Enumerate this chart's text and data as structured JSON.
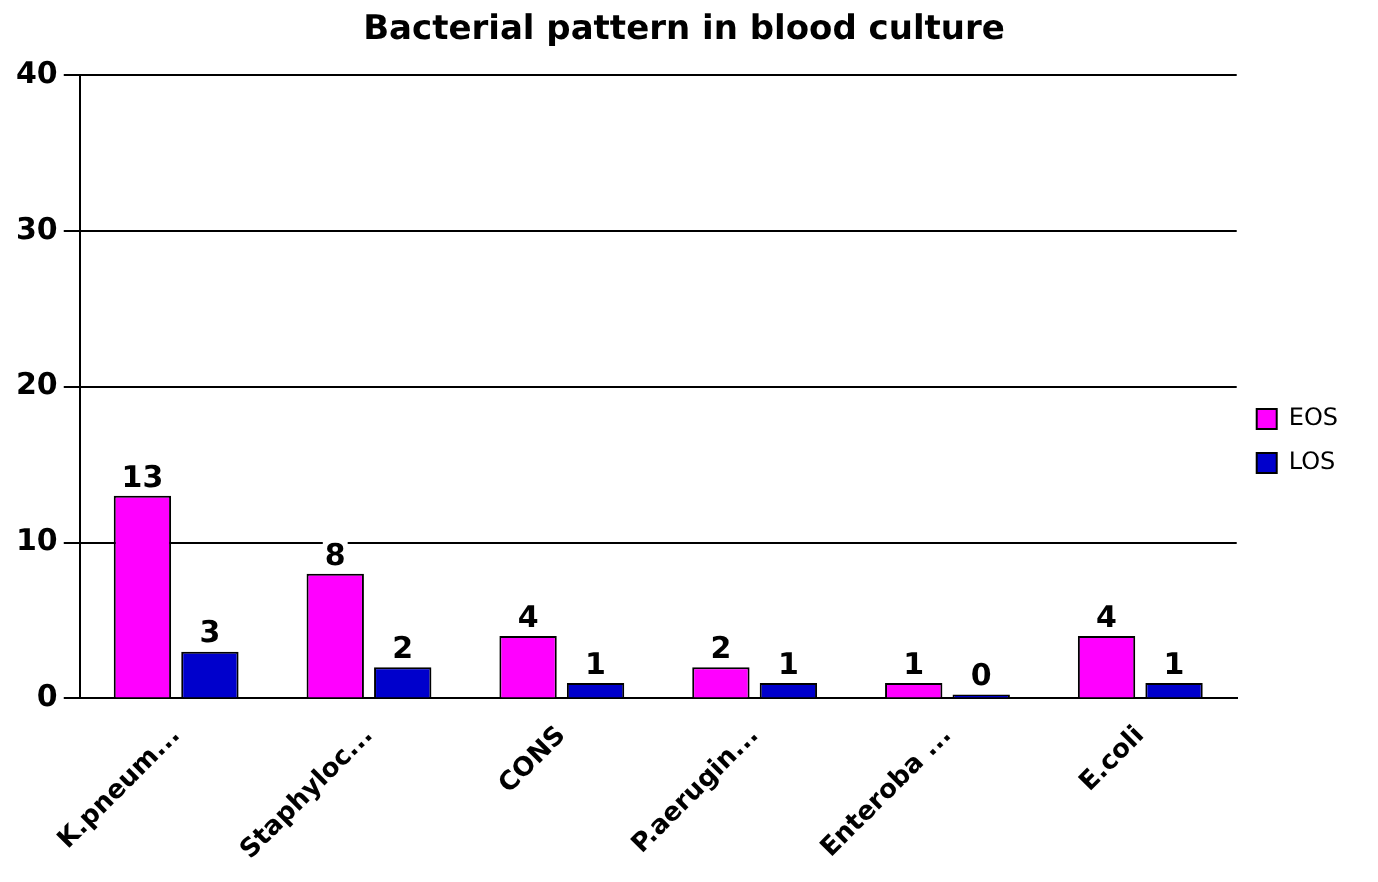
{
  "chart_data": {
    "type": "bar",
    "title": "Bacterial pattern in blood culture",
    "categories": [
      "K.pneum...",
      "Staphyloc...",
      "CONS",
      "P.aerugin...",
      "Enteroba ...",
      "E.coli"
    ],
    "series": [
      {
        "name": "EOS",
        "color": "#ff00ff",
        "values": [
          13,
          8,
          4,
          2,
          1,
          4
        ]
      },
      {
        "name": "LOS",
        "color": "#0000cc",
        "values": [
          3,
          2,
          1,
          1,
          0,
          1
        ]
      }
    ],
    "ylim": [
      0,
      40
    ],
    "yticks": [
      0,
      10,
      20,
      30,
      40
    ],
    "grid": "y",
    "legend": "right",
    "data_labels": true
  }
}
